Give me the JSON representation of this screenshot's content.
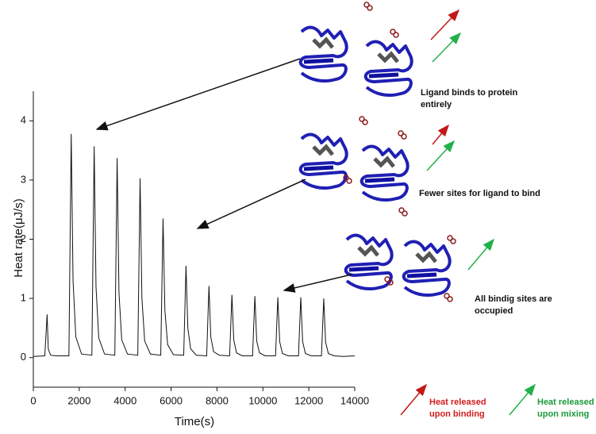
{
  "chart_data": {
    "type": "line",
    "x_label": "Time(s)",
    "y_label": "Heat rate(μJ/s)",
    "x": [
      0,
      500,
      600,
      650,
      750,
      1000,
      1550,
      1650,
      1730,
      1850,
      2100,
      2550,
      2650,
      2730,
      2850,
      3100,
      3550,
      3650,
      3730,
      3850,
      4100,
      4550,
      4650,
      4730,
      4850,
      5100,
      5550,
      5650,
      5730,
      5850,
      6100,
      6550,
      6650,
      6730,
      6850,
      7100,
      7550,
      7650,
      7730,
      7850,
      8100,
      8550,
      8650,
      8730,
      8850,
      9100,
      9550,
      9650,
      9730,
      9850,
      10100,
      10550,
      10650,
      10730,
      10850,
      11100,
      11550,
      11650,
      11730,
      11850,
      12100,
      12550,
      12650,
      12730,
      12850,
      13100,
      13500,
      14000
    ],
    "series": [
      {
        "color": "#111111",
        "values": [
          0.02,
          0.03,
          0.73,
          0.15,
          0.04,
          0.03,
          0.03,
          3.78,
          1.3,
          0.35,
          0.06,
          0.04,
          3.57,
          1.2,
          0.33,
          0.06,
          0.04,
          3.37,
          1.1,
          0.3,
          0.06,
          0.04,
          3.03,
          1.0,
          0.28,
          0.06,
          0.04,
          2.35,
          0.8,
          0.22,
          0.05,
          0.04,
          1.55,
          0.5,
          0.15,
          0.04,
          0.03,
          1.21,
          0.35,
          0.1,
          0.04,
          0.03,
          1.06,
          0.3,
          0.08,
          0.03,
          0.03,
          1.04,
          0.28,
          0.08,
          0.03,
          0.03,
          1.02,
          0.27,
          0.07,
          0.03,
          0.03,
          1.02,
          0.27,
          0.07,
          0.03,
          0.03,
          1.0,
          0.26,
          0.07,
          0.03,
          0.02,
          0.03
        ]
      }
    ],
    "xlim": [
      0,
      14000
    ],
    "xticks": [
      0,
      2000,
      4000,
      6000,
      8000,
      10000,
      12000,
      14000
    ],
    "ylim": [
      -0.5,
      4.5
    ],
    "yticks": [
      0,
      1,
      2,
      3,
      4
    ],
    "annotations": [
      "Ligand binds to protein entirely",
      "Fewer sites for ligand to bind",
      "All bindig sites are occupied"
    ],
    "legend": [
      "Heat released upon binding",
      "Heat released upon mixing"
    ]
  }
}
